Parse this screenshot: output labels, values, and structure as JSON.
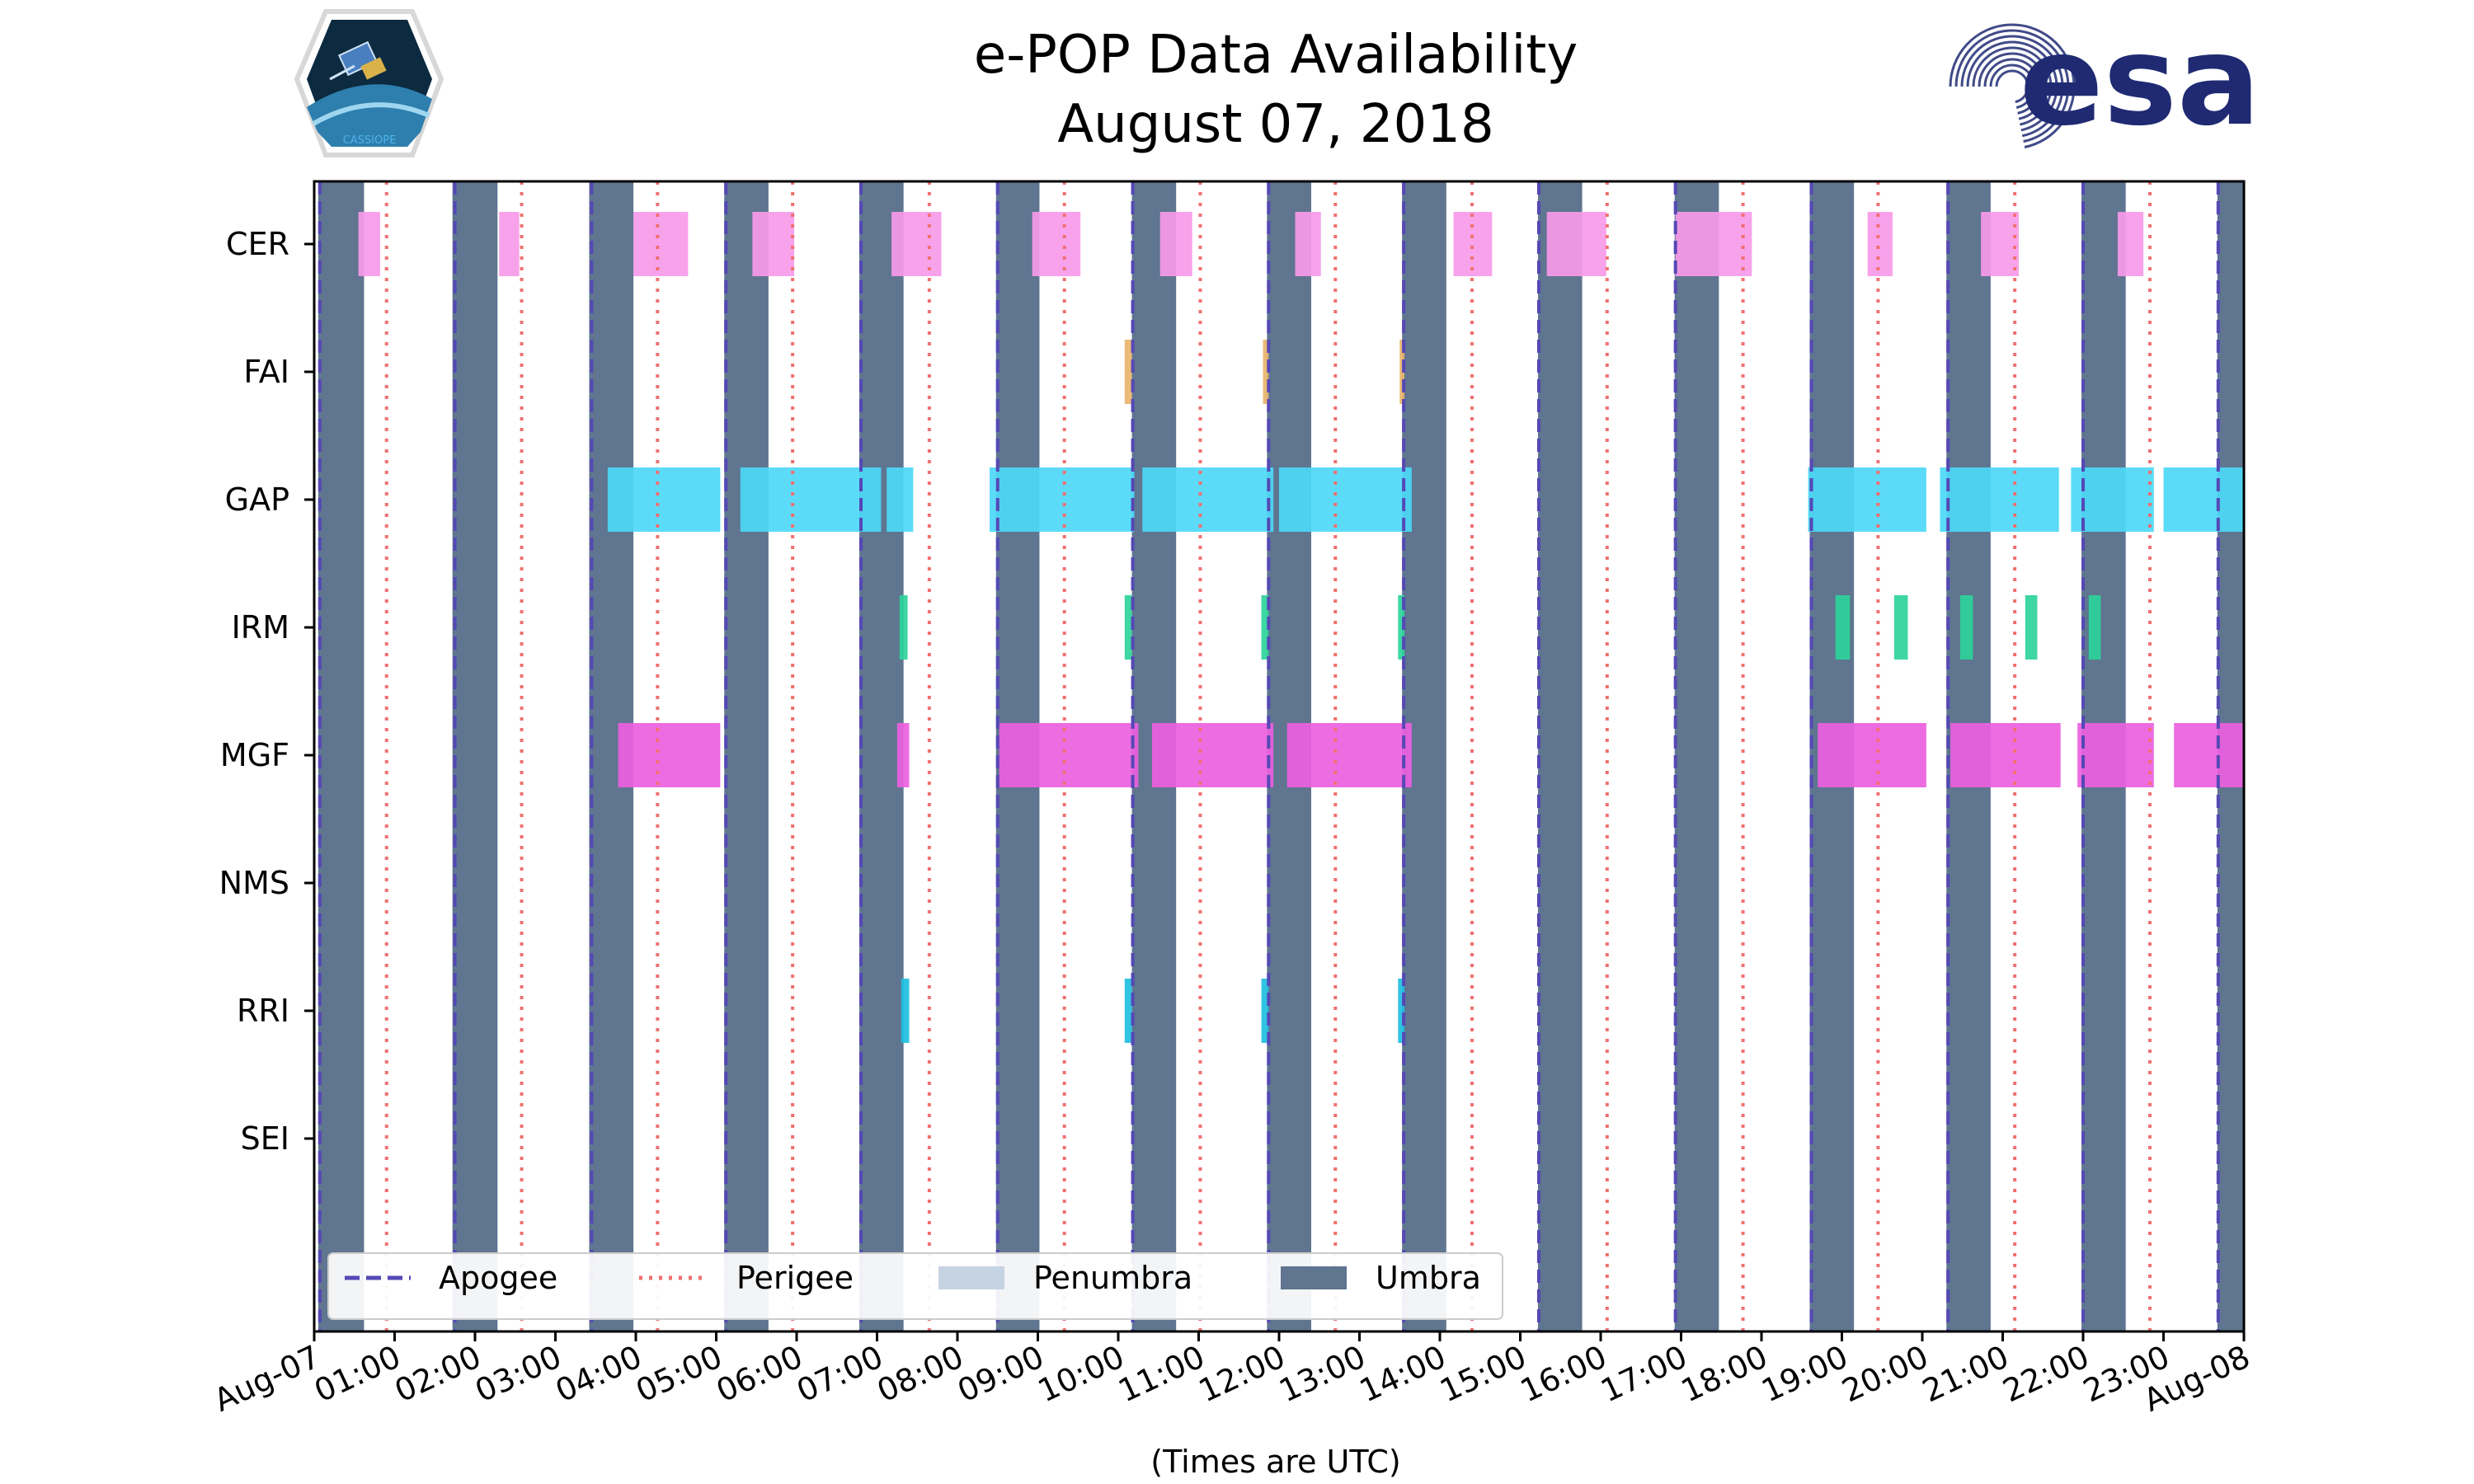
{
  "chart_data": {
    "type": "timeline",
    "title": "e-POP Data Availability",
    "subtitle": "August 07, 2018",
    "xlabel": "(Times are UTC)",
    "x_range_hours": [
      0,
      24
    ],
    "x_tick_labels": [
      "Aug-07",
      "01:00",
      "02:00",
      "03:00",
      "04:00",
      "05:00",
      "06:00",
      "07:00",
      "08:00",
      "09:00",
      "10:00",
      "11:00",
      "12:00",
      "13:00",
      "14:00",
      "15:00",
      "16:00",
      "17:00",
      "18:00",
      "19:00",
      "20:00",
      "21:00",
      "22:00",
      "23:00",
      "Aug-08"
    ],
    "instruments": [
      "CER",
      "FAI",
      "GAP",
      "IRM",
      "MGF",
      "NMS",
      "RRI",
      "SEI"
    ],
    "colors": {
      "CER": "#f79ae9",
      "FAI": "#e8b46b",
      "GAP": "#4dd8f7",
      "IRM": "#2ed39a",
      "MGF": "#ec5fe0",
      "NMS": "#999999",
      "RRI": "#1fbfe0",
      "SEI": "#999999",
      "umbra": "#5f7590",
      "penumbra": "#c6d3e3",
      "apogee": "#5548b5",
      "perigee": "#f07070"
    },
    "umbra_hours": [
      [
        0.05,
        0.62
      ],
      [
        1.72,
        2.28
      ],
      [
        3.42,
        3.97
      ],
      [
        5.1,
        5.65
      ],
      [
        6.78,
        7.33
      ],
      [
        8.48,
        9.02
      ],
      [
        10.17,
        10.72
      ],
      [
        11.85,
        12.4
      ],
      [
        13.53,
        14.08
      ],
      [
        15.22,
        15.77
      ],
      [
        16.92,
        17.47
      ],
      [
        18.6,
        19.15
      ],
      [
        20.3,
        20.85
      ],
      [
        21.98,
        22.53
      ],
      [
        23.67,
        24.0
      ]
    ],
    "apogee_hours": [
      0.07,
      1.75,
      3.45,
      5.12,
      6.8,
      8.5,
      10.18,
      11.87,
      13.55,
      15.23,
      16.93,
      18.62,
      20.32,
      22.0,
      23.68
    ],
    "perigee_hours": [
      0.9,
      2.58,
      4.27,
      5.95,
      7.65,
      9.33,
      11.02,
      12.7,
      14.4,
      16.08,
      17.77,
      19.45,
      21.15,
      22.83
    ],
    "availability": {
      "CER": [
        [
          0.55,
          0.82
        ],
        [
          2.3,
          2.55
        ],
        [
          3.97,
          4.65
        ],
        [
          5.45,
          5.97
        ],
        [
          7.18,
          7.8
        ],
        [
          8.93,
          9.53
        ],
        [
          10.52,
          10.92
        ],
        [
          12.2,
          12.52
        ],
        [
          14.17,
          14.65
        ],
        [
          15.33,
          16.07
        ],
        [
          16.93,
          17.88
        ],
        [
          19.32,
          19.63
        ],
        [
          20.73,
          21.2
        ],
        [
          22.43,
          22.75
        ]
      ],
      "FAI": [
        [
          10.08,
          10.17
        ],
        [
          11.8,
          11.87
        ],
        [
          13.5,
          13.56
        ]
      ],
      "GAP": [
        [
          3.65,
          5.05
        ],
        [
          5.3,
          7.05
        ],
        [
          7.12,
          7.45
        ],
        [
          8.4,
          10.2
        ],
        [
          10.3,
          11.93
        ],
        [
          12.0,
          13.65
        ],
        [
          18.58,
          20.05
        ],
        [
          20.22,
          21.7
        ],
        [
          21.85,
          22.88
        ],
        [
          23.0,
          24.0
        ]
      ],
      "IRM": [
        [
          7.28,
          7.38
        ],
        [
          10.08,
          10.17
        ],
        [
          11.78,
          11.87
        ],
        [
          13.48,
          13.56
        ],
        [
          18.92,
          19.1
        ],
        [
          19.65,
          19.82
        ],
        [
          20.47,
          20.63
        ],
        [
          21.28,
          21.43
        ],
        [
          22.07,
          22.22
        ]
      ],
      "MGF": [
        [
          3.78,
          5.05
        ],
        [
          7.25,
          7.4
        ],
        [
          8.52,
          10.25
        ],
        [
          10.42,
          11.93
        ],
        [
          12.1,
          13.65
        ],
        [
          18.7,
          20.05
        ],
        [
          20.35,
          21.72
        ],
        [
          21.93,
          22.88
        ],
        [
          23.13,
          24.0
        ]
      ],
      "NMS": [],
      "RRI": [
        [
          7.3,
          7.4
        ],
        [
          10.08,
          10.17
        ],
        [
          11.78,
          11.87
        ],
        [
          13.48,
          13.56
        ]
      ],
      "SEI": []
    },
    "legend": {
      "position": "bottom-left",
      "items": [
        {
          "label": "Apogee",
          "style": "dashed",
          "color_key": "apogee"
        },
        {
          "label": "Perigee",
          "style": "dotted",
          "color_key": "perigee"
        },
        {
          "label": "Penumbra",
          "style": "patch",
          "color_key": "penumbra"
        },
        {
          "label": "Umbra",
          "style": "patch",
          "color_key": "umbra"
        }
      ]
    }
  },
  "logos": {
    "cassiope_text": "CASSIOPE",
    "esa_text": "esa",
    "esa_color": "#1f2a73"
  }
}
